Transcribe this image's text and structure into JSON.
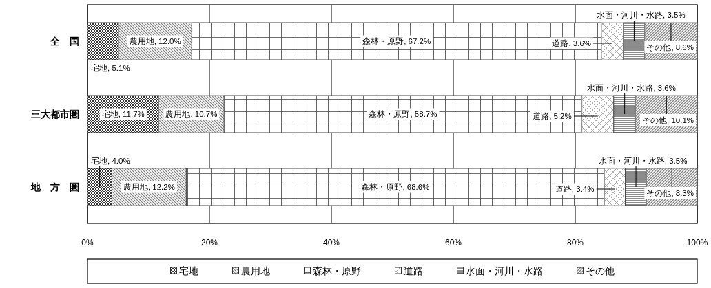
{
  "chart_data": {
    "type": "bar",
    "orientation": "horizontal",
    "stacked": true,
    "categories": [
      "全　国",
      "三大都市圏",
      "地　方　圏"
    ],
    "series": [
      {
        "name": "宅地",
        "color": "#333333",
        "values": [
          5.1,
          11.7,
          4.0
        ],
        "value_labels": [
          "宅地, 5.1%",
          "宅地, 11.7%",
          "宅地, 4.0%"
        ]
      },
      {
        "name": "農用地",
        "color": "#808080",
        "values": [
          12.0,
          10.7,
          12.2
        ],
        "value_labels": [
          "農用地, 12.0%",
          "農用地, 10.7%",
          "農用地, 12.2%"
        ]
      },
      {
        "name": "森林・原野",
        "color": "#404040",
        "values": [
          67.2,
          58.7,
          68.6
        ],
        "value_labels": [
          "森林・原野, 67.2%",
          "森林・原野, 58.7%",
          "森林・原野, 68.6%"
        ]
      },
      {
        "name": "道路",
        "color": "#999999",
        "values": [
          3.6,
          5.2,
          3.4
        ],
        "value_labels": [
          "道路, 3.6%",
          "道路, 5.2%",
          "道路, 3.4%"
        ]
      },
      {
        "name": "水面・河川・水路",
        "color": "#404040",
        "values": [
          3.5,
          3.6,
          3.5
        ],
        "value_labels": [
          "水面・河川・水路, 3.5%",
          "水面・河川・水路, 3.6%",
          "水面・河川・水路, 3.5%"
        ]
      },
      {
        "name": "その他",
        "color": "#808080",
        "values": [
          8.6,
          10.1,
          8.3
        ],
        "value_labels": [
          "その他, 8.6%",
          "その他, 10.1%",
          "その他, 8.3%"
        ]
      }
    ],
    "xlim": [
      0,
      100
    ],
    "xticks": [
      {
        "value": 0,
        "label": "0%"
      },
      {
        "value": 20,
        "label": "20%"
      },
      {
        "value": 40,
        "label": "40%"
      },
      {
        "value": 60,
        "label": "60%"
      },
      {
        "value": 80,
        "label": "80%"
      },
      {
        "value": 100,
        "label": "100%"
      }
    ],
    "grid": "x",
    "legend": "bottom"
  }
}
